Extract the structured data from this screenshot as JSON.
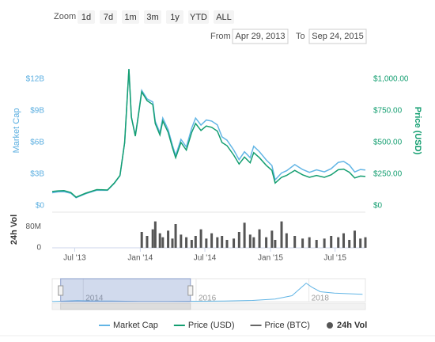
{
  "range_selector": {
    "zoom_label": "Zoom",
    "buttons": [
      "1d",
      "7d",
      "1m",
      "3m",
      "1y",
      "YTD",
      "ALL"
    ],
    "from_label": "From",
    "from": "Apr 29, 2013",
    "to_label": "To",
    "to": "Sep 24, 2015"
  },
  "chart_data": {
    "type": "line",
    "x": [
      "2013-04-29",
      "2013-05-15",
      "2013-06-01",
      "2013-06-20",
      "2013-07-05",
      "2013-08-01",
      "2013-09-01",
      "2013-10-01",
      "2013-10-20",
      "2013-11-05",
      "2013-11-18",
      "2013-11-30",
      "2013-12-07",
      "2013-12-18",
      "2013-12-25",
      "2014-01-05",
      "2014-01-20",
      "2014-02-05",
      "2014-02-12",
      "2014-02-25",
      "2014-03-05",
      "2014-03-20",
      "2014-04-01",
      "2014-04-10",
      "2014-04-25",
      "2014-05-10",
      "2014-05-25",
      "2014-06-05",
      "2014-06-20",
      "2014-07-05",
      "2014-07-20",
      "2014-08-05",
      "2014-08-18",
      "2014-09-01",
      "2014-09-20",
      "2014-10-05",
      "2014-10-20",
      "2014-11-05",
      "2014-11-15",
      "2014-12-01",
      "2014-12-20",
      "2015-01-05",
      "2015-01-14",
      "2015-02-01",
      "2015-02-15",
      "2015-03-10",
      "2015-04-01",
      "2015-04-20",
      "2015-05-10",
      "2015-06-01",
      "2015-06-20",
      "2015-07-10",
      "2015-07-25",
      "2015-08-10",
      "2015-08-25",
      "2015-09-10",
      "2015-09-24"
    ],
    "xlim": [
      "2013-04-29",
      "2015-09-24"
    ],
    "xticks": [
      {
        "value": "2013-07-01",
        "label": "Jul '13"
      },
      {
        "value": "2014-01-01",
        "label": "Jan '14"
      },
      {
        "value": "2014-07-01",
        "label": "Jul '14"
      },
      {
        "value": "2015-01-01",
        "label": "Jan '15"
      },
      {
        "value": "2015-07-01",
        "label": "Jul '15"
      }
    ],
    "ylim": [
      0,
      13.5
    ],
    "yticks": [
      {
        "value": 0,
        "label": "$0"
      },
      {
        "value": 3,
        "label": "$3B"
      },
      {
        "value": 6,
        "label": "$6B"
      },
      {
        "value": 9,
        "label": "$9B"
      },
      {
        "value": 12,
        "label": "$12B"
      }
    ],
    "y2lim": [
      0,
      1125
    ],
    "y2ticks": [
      {
        "value": 0,
        "label": "$0"
      },
      {
        "value": 250,
        "label": "$250.00"
      },
      {
        "value": 500,
        "label": "$500.00"
      },
      {
        "value": 750,
        "label": "$750.00"
      },
      {
        "value": 1000,
        "label": "$1,000.00"
      }
    ],
    "series": [
      {
        "name": "Market Cap",
        "color": "#62b5e5",
        "values": [
          1.24,
          1.32,
          1.34,
          1.19,
          0.77,
          1.15,
          1.48,
          1.47,
          2.13,
          2.86,
          5.98,
          12.96,
          8.44,
          6.66,
          8.23,
          10.94,
          10.13,
          9.84,
          8.0,
          6.92,
          8.31,
          7.22,
          5.75,
          4.77,
          6.3,
          5.57,
          7.37,
          8.32,
          7.65,
          8.13,
          8.03,
          7.67,
          6.53,
          6.22,
          5.28,
          4.37,
          5.12,
          4.56,
          5.65,
          5.13,
          4.35,
          3.82,
          2.47,
          3.11,
          3.32,
          3.91,
          3.44,
          3.17,
          3.41,
          3.22,
          3.52,
          4.12,
          4.21,
          3.86,
          3.21,
          3.44,
          3.4
        ]
      },
      {
        "name": "Price (USD)",
        "color": "#139e70",
        "axis": "y2",
        "values": [
          113,
          118,
          120,
          105,
          68,
          100,
          128,
          125,
          180,
          240,
          500,
          1080,
          700,
          550,
          680,
          900,
          830,
          800,
          650,
          560,
          670,
          580,
          460,
          380,
          500,
          440,
          580,
          650,
          595,
          630,
          620,
          590,
          500,
          475,
          400,
          330,
          385,
          340,
          420,
          380,
          320,
          280,
          180,
          225,
          240,
          280,
          245,
          225,
          240,
          225,
          245,
          285,
          290,
          265,
          220,
          235,
          232
        ]
      },
      {
        "name": "Price (BTC)",
        "color": "#666666"
      }
    ],
    "volume": {
      "name": "24h Vol",
      "color": "#555555",
      "ylim": [
        0,
        135
      ],
      "yticks": [
        0,
        {
          "value": 80,
          "label": "80M"
        }
      ],
      "values": [
        null,
        null,
        null,
        null,
        null,
        null,
        null,
        null,
        null,
        null,
        null,
        null,
        null,
        null,
        null,
        60,
        45,
        70,
        100,
        55,
        40,
        65,
        35,
        90,
        50,
        40,
        30,
        45,
        70,
        35,
        55,
        40,
        45,
        30,
        35,
        60,
        95,
        50,
        40,
        70,
        40,
        65,
        30,
        100,
        55,
        45,
        35,
        40,
        30,
        35,
        45,
        40,
        55,
        30,
        65,
        35,
        40
      ]
    },
    "navigator": {
      "x": [
        2013.45,
        2013.9,
        2014.1,
        2014.5,
        2015.0,
        2015.5,
        2016.0,
        2016.5,
        2017.0,
        2017.4,
        2017.7,
        2017.95,
        2018.05,
        2018.2,
        2018.45,
        2018.7,
        2018.95
      ],
      "values": [
        15,
        160,
        110,
        80,
        40,
        35,
        60,
        90,
        180,
        400,
        900,
        2800,
        2200,
        1500,
        1300,
        1200,
        1100
      ],
      "xlim": [
        2013.45,
        2019
      ],
      "ylim": [
        0,
        3000
      ],
      "xticks": [
        2014,
        2016,
        2018
      ],
      "selected": [
        2013.6,
        2015.9
      ]
    }
  }
}
